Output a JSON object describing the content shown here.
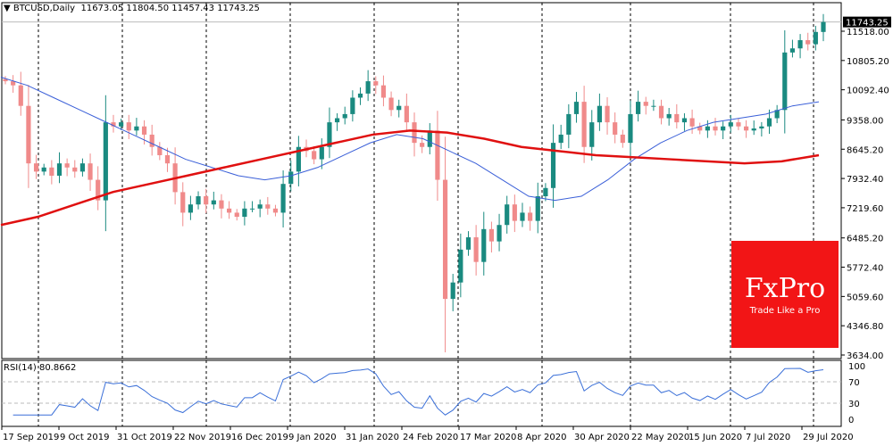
{
  "header": {
    "symbol": "BTCUSD,Daily",
    "open": "11673.05",
    "high": "11804.50",
    "low": "11457.43",
    "close": "11743.25"
  },
  "price_axis": {
    "current": "11743.25",
    "ticks": [
      "11518.00",
      "10805.20",
      "10092.40",
      "9358.00",
      "8645.20",
      "7932.40",
      "7219.60",
      "6485.20",
      "5772.40",
      "5059.60",
      "4346.80",
      "3634.00"
    ],
    "min": 3634,
    "max": 11518
  },
  "rsi": {
    "title": "RSI(14) 80.8662",
    "ticks": [
      "100",
      "70",
      "30",
      "0"
    ]
  },
  "date_axis": [
    "17 Sep 2019",
    "9 Oct 2019",
    "31 Oct 2019",
    "22 Nov 2019",
    "16 Dec 2019",
    "9 Jan 2020",
    "31 Jan 2020",
    "24 Feb 2020",
    "17 Mar 2020",
    "8 Apr 2020",
    "30 Apr 2020",
    "22 May 2020",
    "15 Jun 2020",
    "7 Jul 2020",
    "29 Jul 2020"
  ],
  "logo": {
    "brand": "FxPro",
    "tagline": "Trade Like a Pro"
  },
  "colors": {
    "bull": "#1a8a80",
    "bear": "#f08a8a",
    "ma_fast": "#3a5fd8",
    "ma_slow": "#e01010"
  },
  "closes": [
    10300,
    10200,
    9700,
    8300,
    8100,
    8200,
    8000,
    8300,
    8200,
    8100,
    8300,
    7900,
    7400,
    9300,
    9200,
    9300,
    9100,
    9200,
    9000,
    8700,
    8500,
    8300,
    7600,
    7100,
    7300,
    7500,
    7300,
    7400,
    7200,
    7100,
    7000,
    7200,
    7200,
    7300,
    7200,
    7100,
    7800,
    8100,
    8700,
    8600,
    8400,
    8700,
    9300,
    9400,
    9500,
    9900,
    10000,
    10300,
    10200,
    9900,
    9600,
    9700,
    9300,
    8800,
    8700,
    9100,
    7900,
    5000,
    5400,
    6200,
    6500,
    5900,
    6700,
    6400,
    6800,
    7300,
    6900,
    7100,
    6900,
    7500,
    7700,
    8800,
    9000,
    9500,
    9800,
    8700,
    9300,
    9700,
    9300,
    9000,
    8800,
    9500,
    9800,
    9700,
    9700,
    9400,
    9500,
    9300,
    9400,
    9200,
    9100,
    9200,
    9100,
    9200,
    9300,
    9200,
    9100,
    9150,
    9200,
    9400,
    9600,
    11000,
    11100,
    11300,
    11200,
    11500,
    11743
  ],
  "ma_fast": [
    10400,
    10200,
    9900,
    9600,
    9300,
    9000,
    8700,
    8400,
    8200,
    8000,
    7900,
    8000,
    8200,
    8500,
    8800,
    9000,
    8900,
    8600,
    8300,
    7900,
    7500,
    7400,
    7500,
    7900,
    8400,
    8800,
    9100,
    9300,
    9400,
    9500,
    9700,
    9800
  ],
  "ma_slow": [
    6800,
    7000,
    7300,
    7600,
    7800,
    8000,
    8200,
    8400,
    8600,
    8800,
    9000,
    9100,
    9050,
    8900,
    8700,
    8600,
    8500,
    8450,
    8400,
    8350,
    8300,
    8350,
    8500
  ]
}
